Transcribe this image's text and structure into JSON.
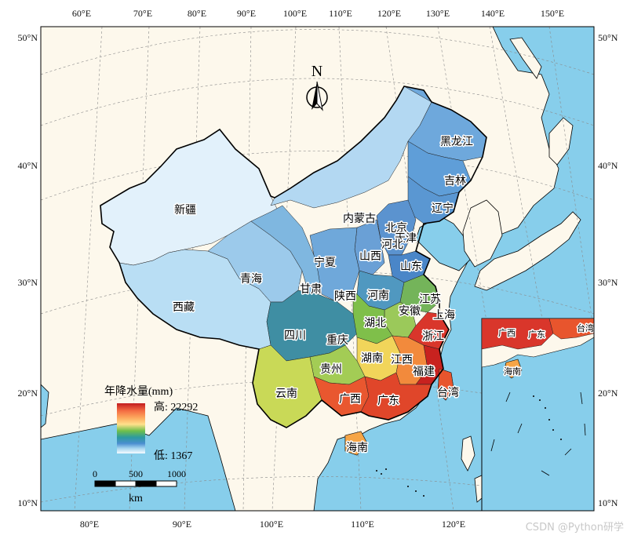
{
  "colors": {
    "ocean": "#87ceeb",
    "land": "#fdf8ec",
    "grid": "#8a8a8a"
  },
  "axes": {
    "top_lon": [
      "60°E",
      "70°E",
      "80°E",
      "90°E",
      "100°E",
      "110°E",
      "120°E",
      "130°E",
      "140°E",
      "150°E"
    ],
    "bottom_lon": [
      "80°E",
      "90°E",
      "100°E",
      "110°E",
      "120°E"
    ],
    "left_lat": [
      "50°N",
      "40°N",
      "30°N",
      "20°N",
      "10°N"
    ],
    "right_lat": [
      "50°N",
      "40°N",
      "30°N",
      "20°N",
      "10°N"
    ]
  },
  "north_arrow": {
    "label": "N"
  },
  "provinces": [
    {
      "name": "新疆"
    },
    {
      "name": "西藏"
    },
    {
      "name": "青海"
    },
    {
      "name": "甘肃"
    },
    {
      "name": "内蒙古"
    },
    {
      "name": "黑龙江"
    },
    {
      "name": "吉林"
    },
    {
      "name": "辽宁"
    },
    {
      "name": "北京"
    },
    {
      "name": "天津"
    },
    {
      "name": "河北"
    },
    {
      "name": "山西"
    },
    {
      "name": "宁夏"
    },
    {
      "name": "山东"
    },
    {
      "name": "陕西"
    },
    {
      "name": "河南"
    },
    {
      "name": "江苏"
    },
    {
      "name": "安徽"
    },
    {
      "name": "上海"
    },
    {
      "name": "湖北"
    },
    {
      "name": "四川"
    },
    {
      "name": "重庆"
    },
    {
      "name": "浙江"
    },
    {
      "name": "湖南"
    },
    {
      "name": "江西"
    },
    {
      "name": "贵州"
    },
    {
      "name": "福建"
    },
    {
      "name": "云南"
    },
    {
      "name": "广西"
    },
    {
      "name": "广东"
    },
    {
      "name": "台湾"
    },
    {
      "name": "海南"
    }
  ],
  "inset": {
    "labels": [
      {
        "name": "广西"
      },
      {
        "name": "广东"
      },
      {
        "name": "台湾"
      },
      {
        "name": "海南"
      }
    ]
  },
  "legend": {
    "title": "年降水量(mm)",
    "high_label": "高: 22292",
    "low_label": "低: 1367",
    "colors": [
      "#d7191c",
      "#f46d43",
      "#fdae61",
      "#fee08b",
      "#a6d96a",
      "#4daf4a",
      "#2c8fa0",
      "#4682c8",
      "#9ecae1",
      "#e6f4fc"
    ]
  },
  "scalebar": {
    "ticks": [
      "0",
      "500",
      "1000"
    ],
    "unit": "km"
  },
  "watermark": "CSDN @Python研学"
}
